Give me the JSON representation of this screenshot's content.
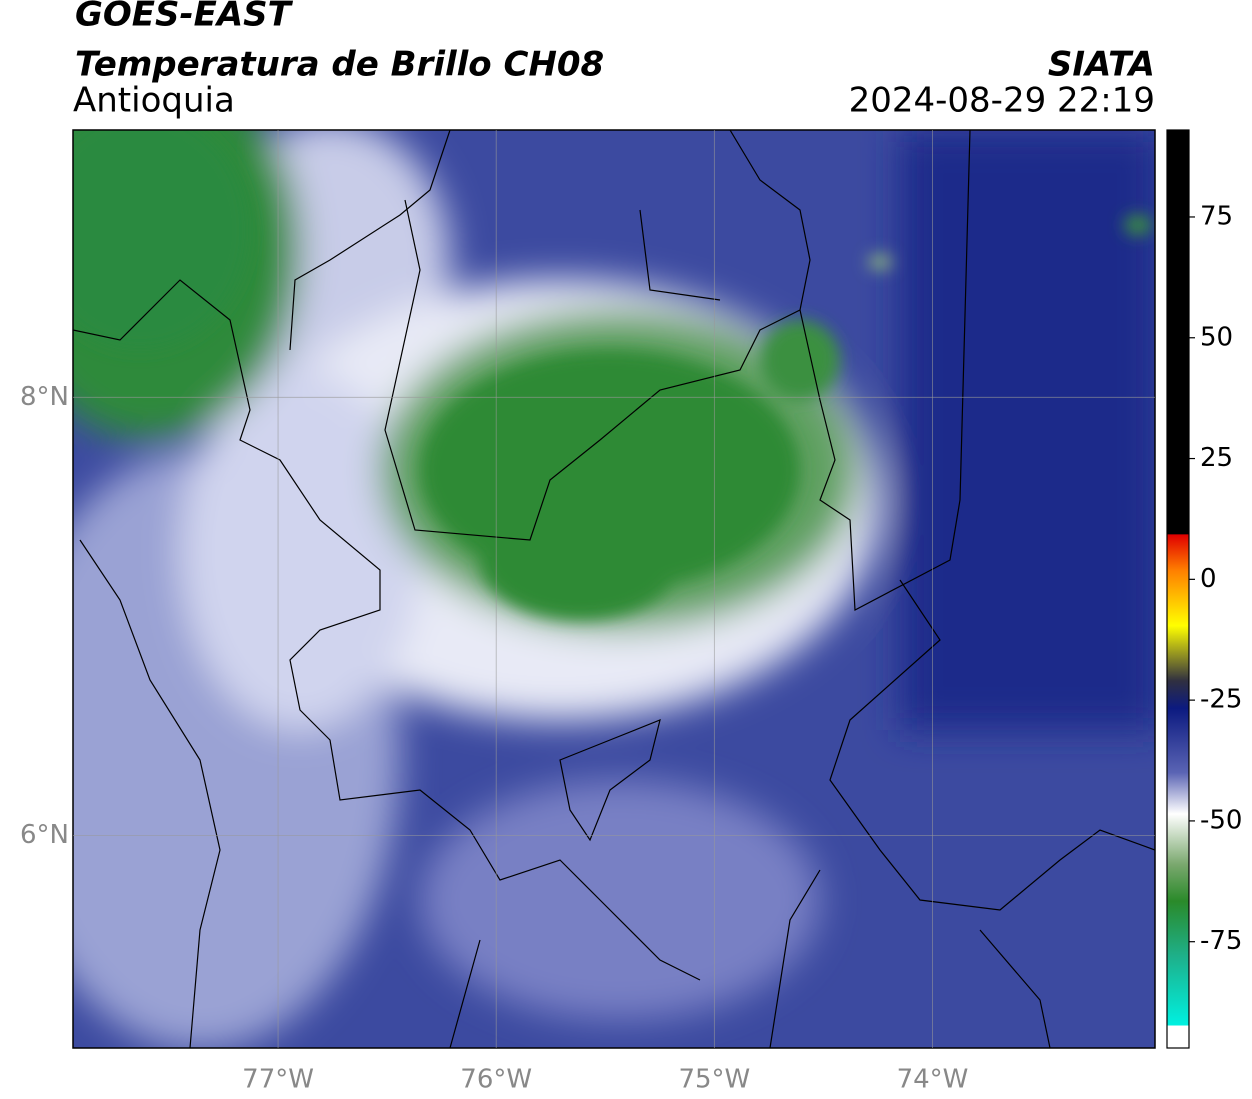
{
  "header": {
    "title": "GOES-EAST",
    "subtitle": "Temperatura de Brillo CH08",
    "region": "Antioquia",
    "source": "SIATA",
    "timestamp": "2024-08-29 22:19"
  },
  "map": {
    "xlim": [
      -77.94,
      -72.98
    ],
    "ylim": [
      5.03,
      9.22
    ],
    "lon_ticks": [
      {
        "value": -77,
        "label": "77°W"
      },
      {
        "value": -76,
        "label": "76°W"
      },
      {
        "value": -75,
        "label": "75°W"
      },
      {
        "value": -74,
        "label": "74°W"
      }
    ],
    "lat_ticks": [
      {
        "value": 8,
        "label": "8°N"
      },
      {
        "value": 6,
        "label": "6°N"
      }
    ]
  },
  "colorbar": {
    "lim": [
      -97,
      93
    ],
    "ticks": [
      75,
      50,
      25,
      0,
      -25,
      -50,
      -75
    ]
  }
}
